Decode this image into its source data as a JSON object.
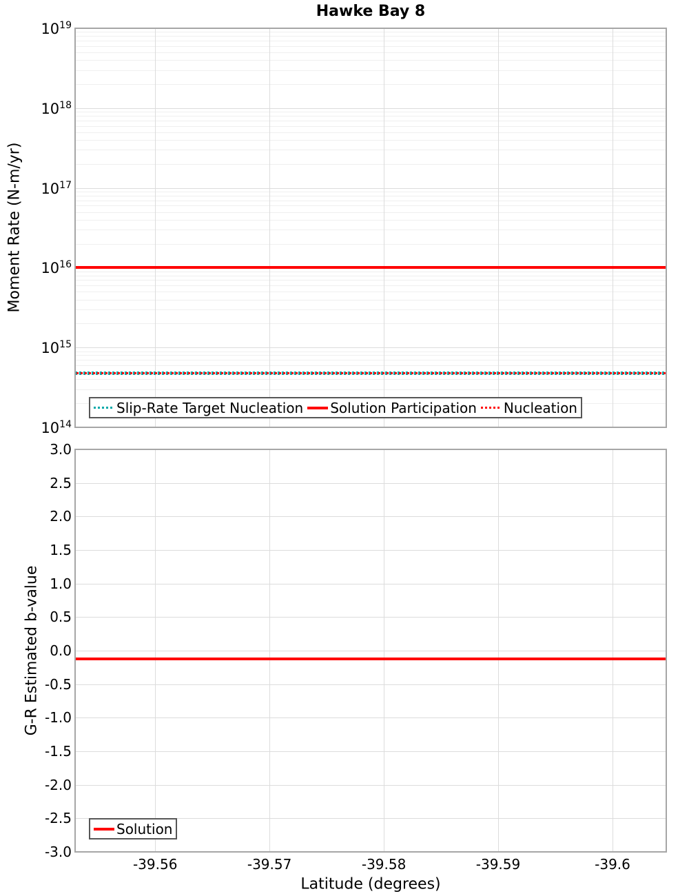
{
  "figure_title": "Hawke Bay 8",
  "colors": {
    "solution": "#ff0000",
    "nucleation": "#ff0000",
    "slip_rate_target": "#00a9a9",
    "grid_major": "#dcdcdc",
    "grid_minor": "#efefef",
    "plot_border": "#a6a6a6",
    "legend_border": "#565656"
  },
  "chart_data": [
    {
      "type": "line",
      "title": "Hawke Bay 8",
      "ylabel": "Moment Rate (N-m/yr)",
      "yscale": "log",
      "ylim": [
        100000000000000.0,
        1e+19
      ],
      "ytick_exponents": [
        19,
        18,
        17,
        16,
        15,
        14
      ],
      "xlim": [
        -39.553,
        -39.6047
      ],
      "xticks": [
        -39.56,
        -39.57,
        -39.58,
        -39.59,
        -39.6
      ],
      "xtick_labels": [
        "-39.56",
        "-39.57",
        "-39.58",
        "-39.59",
        "-39.6"
      ],
      "x_axis_labels_shown": false,
      "grid": true,
      "legend_position": "bottom-left",
      "series": [
        {
          "name": "Slip-Rate Target Nucleation",
          "color": "#00a9a9",
          "style": "dotted",
          "y_constant": 480000000000000.0
        },
        {
          "name": "Solution Participation",
          "color": "#ff0000",
          "style": "solid",
          "y_constant": 1e+16
        },
        {
          "name": "Nucleation",
          "color": "#ff0000",
          "style": "dotted",
          "y_constant": 480000000000000.0
        }
      ]
    },
    {
      "type": "line",
      "title": "",
      "ylabel": "G-R Estimated b-value",
      "xlabel": "Latitude (degrees)",
      "yscale": "linear",
      "ylim": [
        -3.0,
        3.0
      ],
      "yticks": [
        3.0,
        2.5,
        2.0,
        1.5,
        1.0,
        0.5,
        0.0,
        -0.5,
        -1.0,
        -1.5,
        -2.0,
        -2.5,
        -3.0
      ],
      "xlim": [
        -39.553,
        -39.6047
      ],
      "xticks": [
        -39.56,
        -39.57,
        -39.58,
        -39.59,
        -39.6
      ],
      "xtick_labels": [
        "-39.56",
        "-39.57",
        "-39.58",
        "-39.59",
        "-39.6"
      ],
      "x_axis_labels_shown": true,
      "grid": true,
      "legend_position": "bottom-left",
      "series": [
        {
          "name": "Solution",
          "color": "#ff0000",
          "style": "solid",
          "y_constant": -0.12
        }
      ]
    }
  ]
}
